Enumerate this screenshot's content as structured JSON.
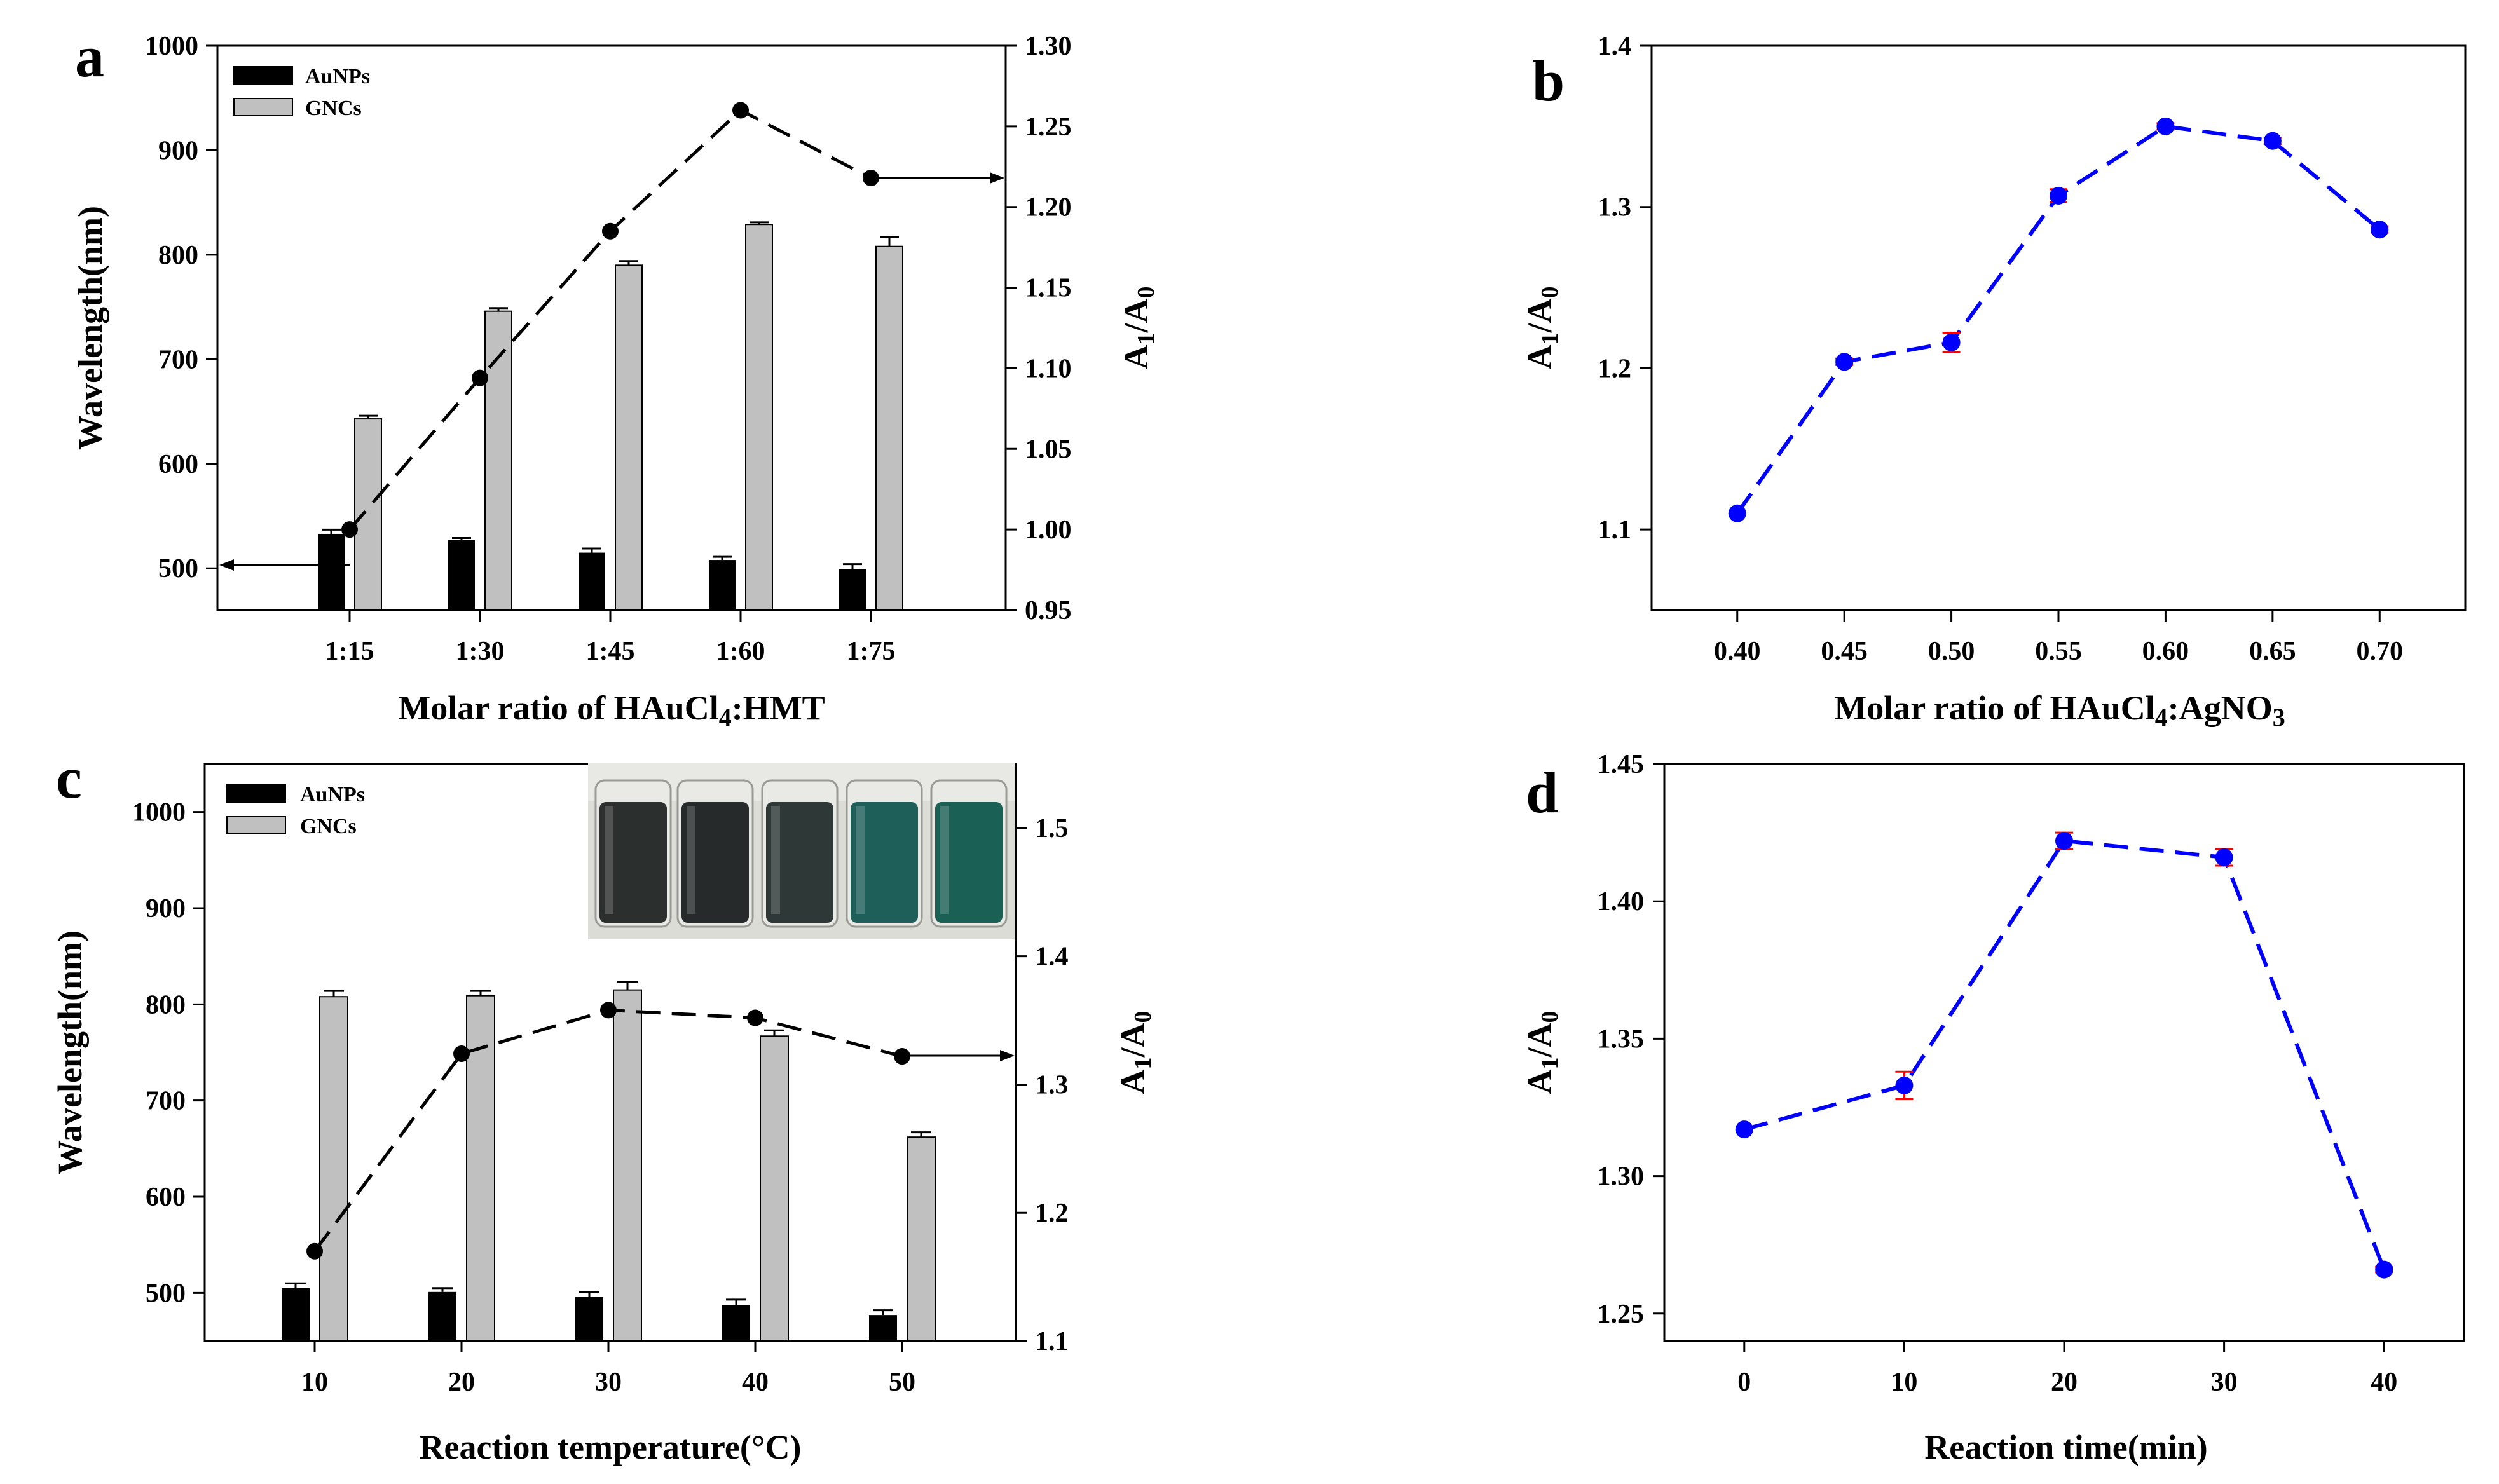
{
  "chart_data": [
    {
      "panel": "a",
      "type": "bar",
      "xlabel": "Molar ratio of HAuCl",
      "xlabel_sub": "4",
      "xlabel_tail": ":HMT",
      "ylabel": "Wavelength(nm)",
      "y2label_main": "A",
      "y2label_sub1": "1",
      "y2label_mid": "/A",
      "y2label_sub2": "0",
      "categories": [
        "1:15",
        "1:30",
        "1:45",
        "1:60",
        "1:75"
      ],
      "ylim": [
        460,
        1000
      ],
      "yticks": [
        "500",
        "600",
        "700",
        "800",
        "900",
        "1000"
      ],
      "y2lim": [
        0.95,
        1.3
      ],
      "y2ticks": [
        "0.95",
        "1.00",
        "1.05",
        "1.10",
        "1.15",
        "1.20",
        "1.25",
        "1.30"
      ],
      "legend": {
        "placement": "top-left",
        "entries": [
          "AuNPs",
          "GNCs"
        ]
      },
      "colors": {
        "AuNPs": "#000000",
        "GNCs": "#c0c0c0",
        "line": "#000000"
      },
      "series": [
        {
          "name": "AuNPs",
          "axis": "left",
          "values": [
            533,
            527,
            515,
            508,
            499
          ],
          "errors": [
            4,
            2,
            4,
            3,
            5
          ]
        },
        {
          "name": "GNCs",
          "axis": "left",
          "values": [
            643,
            746,
            790,
            829,
            808
          ],
          "errors": [
            3,
            3,
            4,
            2,
            9
          ]
        },
        {
          "name": "A1/A0",
          "axis": "right",
          "style": "dashed-line",
          "values": [
            1.0,
            1.094,
            1.185,
            1.26,
            1.218
          ]
        }
      ]
    },
    {
      "panel": "b",
      "type": "line",
      "xlabel": "Molar ratio of HAuCl",
      "xlabel_sub": "4",
      "xlabel_tail": ":AgNO",
      "xlabel_sub2": "3",
      "ylabel_main": "A",
      "ylabel_sub1": "1",
      "ylabel_mid": "/A",
      "ylabel_sub2": "0",
      "x": [
        0.4,
        0.45,
        0.5,
        0.55,
        0.6,
        0.65,
        0.7
      ],
      "xticks": [
        "0.40",
        "0.45",
        "0.50",
        "0.55",
        "0.60",
        "0.65",
        "0.70"
      ],
      "xlim": [
        0.36,
        0.74
      ],
      "ylim": [
        1.05,
        1.4
      ],
      "yticks": [
        "1.1",
        "1.2",
        "1.3",
        "1.4"
      ],
      "colors": {
        "line": "#0000ff",
        "error": "#ff0000"
      },
      "series": [
        {
          "name": "A1/A0",
          "values": [
            1.11,
            1.204,
            1.216,
            1.307,
            1.35,
            1.341,
            1.286
          ],
          "errors": [
            0,
            0.002,
            0.006,
            0.004,
            0.002,
            0.002,
            0.002
          ]
        }
      ]
    },
    {
      "panel": "c",
      "type": "bar",
      "xlabel": "Reaction temperature(°C)",
      "ylabel": "Wavelength(nm)",
      "y2label_main": "A",
      "y2label_sub1": "1",
      "y2label_mid": "/A",
      "y2label_sub2": "0",
      "categories": [
        "10",
        "20",
        "30",
        "40",
        "50"
      ],
      "ylim": [
        450,
        1050
      ],
      "yticks": [
        "500",
        "600",
        "700",
        "800",
        "900",
        "1000"
      ],
      "y2lim": [
        1.1,
        1.55
      ],
      "y2ticks": [
        "1.1",
        "1.2",
        "1.3",
        "1.4",
        "1.5"
      ],
      "legend": {
        "placement": "top-left",
        "entries": [
          "AuNPs",
          "GNCs"
        ]
      },
      "inset": {
        "description_colors": [
          "#2b2f2e",
          "#262a2a",
          "#2e3836",
          "#1e5f5a",
          "#1b6055"
        ],
        "background": "#d9d9d4"
      },
      "colors": {
        "AuNPs": "#000000",
        "GNCs": "#c0c0c0",
        "line": "#000000"
      },
      "series": [
        {
          "name": "AuNPs",
          "axis": "left",
          "values": [
            505,
            501,
            496,
            487,
            477
          ],
          "errors": [
            5,
            4,
            5,
            6,
            5
          ]
        },
        {
          "name": "GNCs",
          "axis": "left",
          "values": [
            808,
            809,
            815,
            767,
            662
          ],
          "errors": [
            6,
            5,
            8,
            6,
            5
          ]
        },
        {
          "name": "A1/A0",
          "axis": "right",
          "style": "dashed-line",
          "values": [
            1.17,
            1.324,
            1.358,
            1.352,
            1.322
          ]
        }
      ]
    },
    {
      "panel": "d",
      "type": "line",
      "xlabel": "Reaction time(min)",
      "ylabel_main": "A",
      "ylabel_sub1": "1",
      "ylabel_mid": "/A",
      "ylabel_sub2": "0",
      "x": [
        0,
        10,
        20,
        30,
        40
      ],
      "xticks": [
        "0",
        "10",
        "20",
        "30",
        "40"
      ],
      "xlim": [
        -5,
        45
      ],
      "ylim": [
        1.24,
        1.45
      ],
      "yticks": [
        "1.25",
        "1.30",
        "1.35",
        "1.40",
        "1.45"
      ],
      "colors": {
        "line": "#0000ff",
        "error": "#ff0000"
      },
      "series": [
        {
          "name": "A1/A0",
          "values": [
            1.317,
            1.333,
            1.422,
            1.416,
            1.266
          ],
          "errors": [
            0,
            0.005,
            0.003,
            0.003,
            0.001
          ]
        }
      ]
    }
  ],
  "panel_letters": [
    "a",
    "b",
    "c",
    "d"
  ]
}
